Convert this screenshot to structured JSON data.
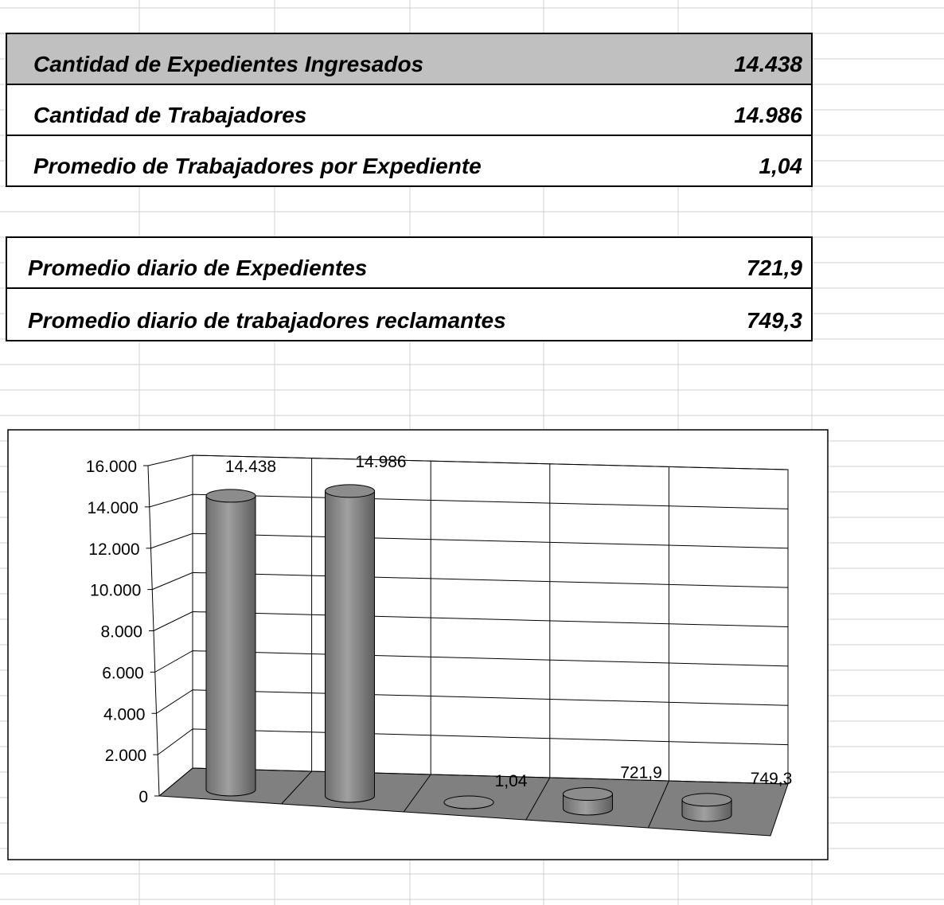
{
  "tables": [
    {
      "rows": [
        [
          "Cantidad de Expedientes Ingresados",
          "14.438"
        ],
        [
          "Cantidad de Trabajadores",
          "14.986"
        ],
        [
          "Promedio de Trabajadores por Expediente",
          "1,04"
        ]
      ]
    },
    {
      "rows": [
        [
          "Promedio diario de Expedientes",
          "721,9"
        ],
        [
          "Promedio diario de trabajadores reclamantes",
          "749,3"
        ]
      ]
    }
  ],
  "chart_data": {
    "type": "bar",
    "color": "#a0a0a0",
    "values": [
      14438,
      14986,
      1.04,
      721.9,
      749.3
    ],
    "value_labels": [
      "14.438",
      "14.986",
      "1,04",
      "721,9",
      "749,3"
    ],
    "ylim": [
      0,
      16000
    ],
    "yticks": [
      0,
      {
        "value": 2000,
        "label": "2.000"
      },
      {
        "value": 4000,
        "label": "4.000"
      },
      {
        "value": 6000,
        "label": "6.000"
      },
      {
        "value": 8000,
        "label": "8.000"
      },
      {
        "value": 10000,
        "label": "10.000"
      },
      {
        "value": 12000,
        "label": "12.000"
      },
      {
        "value": 14000,
        "label": "14.000"
      },
      {
        "value": 16000,
        "label": "16.000"
      }
    ],
    "grid": true
  }
}
